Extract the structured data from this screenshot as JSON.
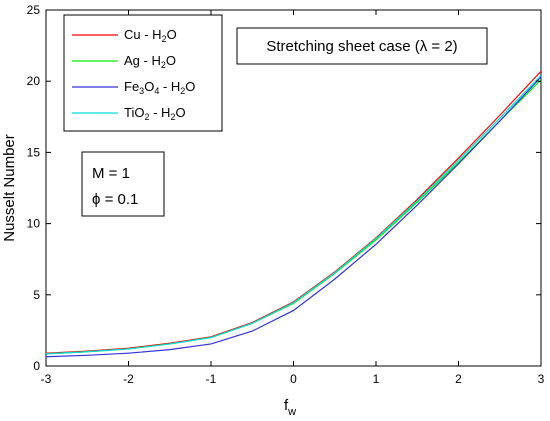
{
  "chart_data": {
    "type": "line",
    "xlabel": "f_w",
    "xlabel_main": "f",
    "xlabel_sub": "w",
    "ylabel": "Nusselt Number",
    "xlim": [
      -3,
      3
    ],
    "ylim": [
      0,
      25
    ],
    "x_ticks": [
      "-3",
      "-2",
      "-1",
      "0",
      "1",
      "2",
      "3"
    ],
    "y_ticks": [
      "0",
      "5",
      "10",
      "15",
      "20",
      "25"
    ],
    "grid": false,
    "legend_position": "top-left",
    "x": [
      -3,
      -2.5,
      -2,
      -1.5,
      -1,
      -0.5,
      0,
      0.5,
      1,
      1.5,
      2,
      2.5,
      3
    ],
    "series": [
      {
        "name": "Cu - H2O",
        "label_parts": [
          "Cu - H",
          "2",
          "O"
        ],
        "color": "#ff0000",
        "values": [
          0.9,
          1.05,
          1.25,
          1.6,
          2.05,
          3.05,
          4.5,
          6.6,
          9.0,
          11.7,
          14.6,
          17.6,
          20.7
        ]
      },
      {
        "name": "Ag - H2O",
        "label_parts": [
          "Ag - H",
          "2",
          "O"
        ],
        "color": "#00ee00",
        "values": [
          0.85,
          1.0,
          1.2,
          1.55,
          2.0,
          3.0,
          4.4,
          6.5,
          8.85,
          11.5,
          14.3,
          17.2,
          20.1
        ]
      },
      {
        "name": "Fe3O4 - H2O",
        "label_parts": [
          "Fe",
          "3",
          "O",
          "4",
          " - H",
          "2",
          "O"
        ],
        "color": "#3333dd",
        "values": [
          0.65,
          0.75,
          0.9,
          1.15,
          1.55,
          2.45,
          3.9,
          6.1,
          8.55,
          11.3,
          14.2,
          17.2,
          20.3
        ]
      },
      {
        "name": "TiO2 - H2O",
        "label_parts": [
          "TiO",
          "2",
          " - H",
          "2",
          "O"
        ],
        "color": "#00dddd",
        "values": [
          0.85,
          1.0,
          1.2,
          1.55,
          2.0,
          3.0,
          4.45,
          6.55,
          8.95,
          11.6,
          14.45,
          17.4,
          20.4
        ]
      }
    ],
    "annotations": {
      "case_box": "Stretching sheet case (λ = 2)",
      "param_M": "M = 1",
      "param_phi": "ϕ = 0.1"
    }
  }
}
